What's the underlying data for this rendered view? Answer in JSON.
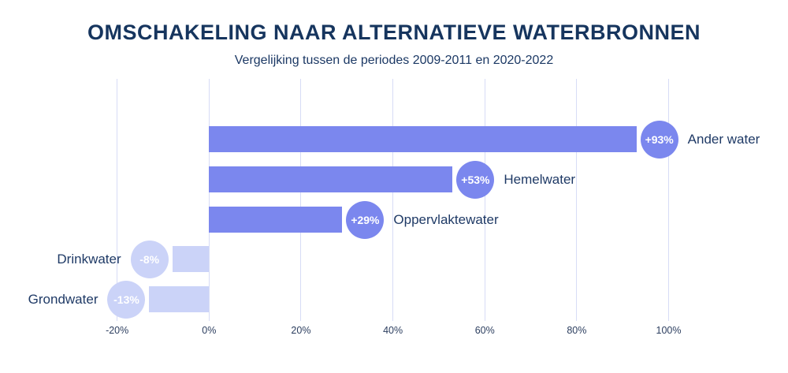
{
  "chart_data": {
    "type": "bar",
    "orientation": "horizontal",
    "title": "OMSCHAKELING NAAR ALTERNATIEVE WATERBRONNEN",
    "subtitle": "Vergelijking tussen de periodes 2009-2011 en 2020-2022",
    "categories": [
      "Ander water",
      "Hemelwater",
      "Oppervlaktewater",
      "Drinkwater",
      "Grondwater"
    ],
    "values": [
      93,
      53,
      29,
      -8,
      -13
    ],
    "badge_labels": [
      "+93%",
      "+53%",
      "+29%",
      "-8%",
      "-13%"
    ],
    "xlabel": "",
    "ylabel": "",
    "x_ticks": [
      -20,
      0,
      20,
      40,
      60,
      80,
      100
    ],
    "x_tick_labels": [
      "-20%",
      "0%",
      "20%",
      "40%",
      "60%",
      "80%",
      "100%"
    ],
    "xlim": [
      -40,
      126
    ],
    "grid": true,
    "legend": "none",
    "colors": {
      "positive_bar": "#7b87ee",
      "negative_bar": "#cbd3f8",
      "badge_text": "#ffffff",
      "grid_line": "#d7dcf6",
      "title_text": "#16355e",
      "subtitle_text": "#1b3864",
      "label_text": "#1f3a66",
      "tick_text": "#2c3e5f",
      "background": "#ffffff"
    }
  }
}
